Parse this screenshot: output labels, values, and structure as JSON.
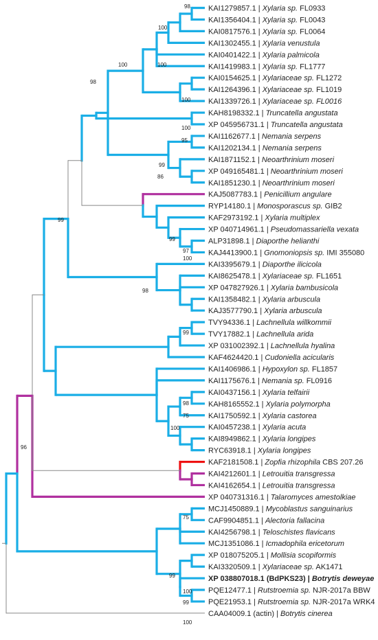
{
  "colors": {
    "thin": "#888888",
    "blue": "#1aaee6",
    "magenta": "#b0309f",
    "red": "#ee1111"
  },
  "leaves": [
    {
      "acc": "KAI1279857.1",
      "sp": "Xylaria sp.",
      "st": " FL0933"
    },
    {
      "acc": "KAI1356404.1",
      "sp": "Xylaria sp.",
      "st": " FL0043"
    },
    {
      "acc": "KAI0817576.1",
      "sp": "Xylaria sp.",
      "st": " FL0064"
    },
    {
      "acc": "KAI1302455.1",
      "sp": "Xylaria venustula",
      "st": ""
    },
    {
      "acc": "KAI0401422.1",
      "sp": "Xylaria palmicola",
      "st": ""
    },
    {
      "acc": "KAI1419983.1",
      "sp": "Xylaria sp.",
      "st": " FL1777"
    },
    {
      "acc": "KAI0154625.1",
      "sp": "Xylariaceae sp.",
      "st": " FL1272"
    },
    {
      "acc": "KAI1264396.1",
      "sp": "Xylariaceae sp.",
      "st": " FL1019"
    },
    {
      "acc": "KAI1339726.1",
      "sp": "Xylariaceae sp. FL0016",
      "st": ""
    },
    {
      "acc": "KAH8198332.1",
      "sp": "Truncatella angustata",
      "st": ""
    },
    {
      "acc": "XP 045956731.1",
      "sp": "Truncatella angustata",
      "st": ""
    },
    {
      "acc": "KAI1162677.1",
      "sp": "Nemania serpens",
      "st": ""
    },
    {
      "acc": "KAI1202134.1",
      "sp": "Nemania serpens",
      "st": ""
    },
    {
      "acc": "KAI1871152.1",
      "sp": "Neoarthrinium moseri",
      "st": ""
    },
    {
      "acc": "XP 049165481.1",
      "sp": "Neoarthrinium moseri",
      "st": ""
    },
    {
      "acc": "KAI1851230.1",
      "sp": "Neoarthrinium moseri",
      "st": ""
    },
    {
      "acc": "KAJ5087783.1",
      "sp": "Penicillium angulare",
      "st": ""
    },
    {
      "acc": "RYP14180.1",
      "sp": "Monosporascus sp.",
      "st": " GIB2"
    },
    {
      "acc": "KAF2973192.1",
      "sp": "Xylaria multiplex",
      "st": ""
    },
    {
      "acc": "XP 040714961.1",
      "sp": "Pseudomassariella vexata",
      "st": ""
    },
    {
      "acc": "ALP31898.1",
      "sp": "Diaporthe helianthi",
      "st": ""
    },
    {
      "acc": "KAJ4413900.1",
      "sp": "Gnomoniopsis sp.",
      "st": " IMI 355080"
    },
    {
      "acc": "KAI3395679.1",
      "sp": "Diaporthe ilicicola",
      "st": ""
    },
    {
      "acc": "KAI8625478.1",
      "sp": "Xylariaceae sp.",
      "st": " FL1651"
    },
    {
      "acc": "XP 047827926.1",
      "sp": "Xylaria bambusicola",
      "st": ""
    },
    {
      "acc": "KAI1358482.1",
      "sp": "Xylaria arbuscula",
      "st": ""
    },
    {
      "acc": "KAJ3577790.1",
      "sp": "Xylaria arbuscula",
      "st": ""
    },
    {
      "acc": "TVY94336.1",
      "sp": "Lachnellula willkommii",
      "st": ""
    },
    {
      "acc": "TVY17882.1",
      "sp": "Lachnellula arida",
      "st": ""
    },
    {
      "acc": "XP 031002392.1",
      "sp": "Lachnellula hyalina",
      "st": ""
    },
    {
      "acc": "KAF4624420.1",
      "sp": "Cudoniella acicularis",
      "st": ""
    },
    {
      "acc": "KAI1406986.1",
      "sp": "Hypoxylon sp.",
      "st": " FL1857"
    },
    {
      "acc": "KAI1175676.1",
      "sp": "Nemania sp.",
      "st": " FL0916"
    },
    {
      "acc": "KAI0437156.1",
      "sp": "Xylaria telfairii",
      "st": ""
    },
    {
      "acc": "KAH8165552.1",
      "sp": "Xylaria polymorpha",
      "st": ""
    },
    {
      "acc": "KAI1750592.1",
      "sp": "Xylaria castorea",
      "st": ""
    },
    {
      "acc": "KAI0457238.1",
      "sp": "Xylaria acuta",
      "st": ""
    },
    {
      "acc": "KAI8949862.1",
      "sp": "Xylaria longipes",
      "st": ""
    },
    {
      "acc": "RYC63918.1",
      "sp": "Xylaria longipes",
      "st": ""
    },
    {
      "acc": "KAF2181508.1",
      "sp": "Zopfia rhizophila",
      "st": " CBS 207.26"
    },
    {
      "acc": "KAI4212601.1",
      "sp": "Letrouitia transgressa",
      "st": ""
    },
    {
      "acc": "KAI4162654.1",
      "sp": "Letrouitia transgressa",
      "st": ""
    },
    {
      "acc": "XP 040731316.1",
      "sp": "Talaromyces amestolkiae",
      "st": ""
    },
    {
      "acc": "MCJ1450889.1",
      "sp": "Mycoblastus sanguinarius",
      "st": ""
    },
    {
      "acc": "CAF9904851.1",
      "sp": "Alectoria fallacina",
      "st": ""
    },
    {
      "acc": "KAI4256798.1",
      "sp": "Teloschistes flavicans",
      "st": ""
    },
    {
      "acc": "MCJ1351086.1",
      "sp": "Icmadophila ericetorum",
      "st": ""
    },
    {
      "acc": "XP 018075205.1",
      "sp": "Mollisia scopiformis",
      "st": ""
    },
    {
      "acc": "KAI3320509.1",
      "sp": "Xylariaceae sp.",
      "st": " AK1471"
    },
    {
      "acc": "XP 038807018.1 (BdPKS23)",
      "sp": "Botrytis deweyae",
      "st": "",
      "bold": true
    },
    {
      "acc": "PQE12477.1",
      "sp": "Rutstroemia sp.",
      "st": " NJR-2017a BBW"
    },
    {
      "acc": "PQE21953.1",
      "sp": "Rutstroemia sp.",
      "st": " NJR-2017a WRK4"
    },
    {
      "acc": "CAA04009.1 (actin)",
      "sp": "Botrytis cinerea",
      "st": ""
    }
  ],
  "bootstrap": {
    "b1": "98",
    "b2": "100",
    "b3": "100",
    "b4": "100",
    "b5": "98",
    "b6": "100",
    "b7": "100",
    "b8": "95",
    "b9": "99",
    "b10": "86",
    "b11": "99",
    "b12": "99",
    "b13": "97",
    "b14": "100",
    "b15": "98",
    "b16": "99",
    "b17": "98",
    "b18": "75",
    "b19": "100",
    "b20": "96",
    "b21": "75",
    "b22": "99",
    "b23": "100",
    "b24": "99",
    "b25": "100"
  }
}
